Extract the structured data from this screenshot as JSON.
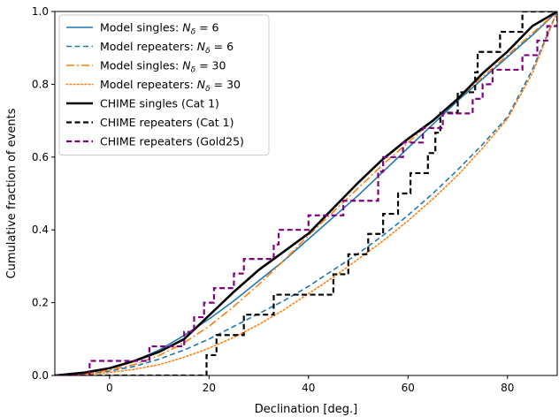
{
  "chart_data": {
    "type": "line",
    "title": "",
    "xlabel": "Declination [deg.]",
    "ylabel": "Cumulative fraction of events",
    "xlim": [
      -11,
      90
    ],
    "ylim": [
      0,
      1
    ],
    "x_ticks": [
      0,
      20,
      40,
      60,
      80
    ],
    "x_tick_labels": [
      "0",
      "20",
      "40",
      "60",
      "80"
    ],
    "y_ticks": [
      0,
      0.2,
      0.4,
      0.6,
      0.8,
      1.0
    ],
    "y_tick_labels": [
      "0.0",
      "0.2",
      "0.4",
      "0.6",
      "0.8",
      "1.0"
    ],
    "grid": false,
    "legend_position": "top-left",
    "series": [
      {
        "name_prefix": "Model singles: ",
        "name_math": "N",
        "name_sub": "δ",
        "name_suffix": " = 6",
        "color": "#1f77b4",
        "style": "solid",
        "width": 1.6,
        "step": false,
        "x": [
          -11,
          -5,
          0,
          5,
          10,
          15,
          20,
          25,
          30,
          35,
          40,
          45,
          50,
          55,
          60,
          65,
          70,
          75,
          80,
          85,
          90
        ],
        "y": [
          0,
          0.005,
          0.02,
          0.04,
          0.07,
          0.11,
          0.155,
          0.205,
          0.26,
          0.315,
          0.375,
          0.435,
          0.495,
          0.56,
          0.625,
          0.69,
          0.755,
          0.815,
          0.875,
          0.935,
          1.0
        ]
      },
      {
        "name_prefix": "Model repeaters: ",
        "name_math": "N",
        "name_sub": "δ",
        "name_suffix": " = 6",
        "color": "#1f77b4",
        "style": "dashed",
        "width": 1.6,
        "step": false,
        "x": [
          -11,
          -5,
          0,
          5,
          10,
          15,
          20,
          25,
          30,
          35,
          40,
          45,
          50,
          55,
          60,
          65,
          70,
          75,
          80,
          85,
          90
        ],
        "y": [
          0,
          0.004,
          0.012,
          0.025,
          0.045,
          0.07,
          0.1,
          0.135,
          0.17,
          0.205,
          0.245,
          0.29,
          0.335,
          0.385,
          0.44,
          0.5,
          0.565,
          0.635,
          0.71,
          0.84,
          1.0
        ]
      },
      {
        "name_prefix": "Model singles: ",
        "name_math": "N",
        "name_sub": "δ",
        "name_suffix": " = 30",
        "color": "#ff7f0e",
        "style": "dashdot",
        "width": 1.6,
        "step": false,
        "x": [
          -11,
          -5,
          0,
          5,
          10,
          15,
          20,
          25,
          30,
          35,
          40,
          45,
          50,
          55,
          60,
          65,
          70,
          75,
          80,
          85,
          90
        ],
        "y": [
          0,
          0.004,
          0.015,
          0.03,
          0.055,
          0.09,
          0.135,
          0.19,
          0.25,
          0.315,
          0.385,
          0.45,
          0.515,
          0.58,
          0.64,
          0.7,
          0.76,
          0.82,
          0.88,
          0.94,
          1.0
        ]
      },
      {
        "name_prefix": "Model repeaters: ",
        "name_math": "N",
        "name_sub": "δ",
        "name_suffix": " = 30",
        "color": "#ff7f0e",
        "style": "dotted",
        "width": 1.6,
        "step": false,
        "x": [
          -11,
          -5,
          0,
          5,
          10,
          15,
          20,
          25,
          30,
          35,
          40,
          45,
          50,
          55,
          60,
          65,
          70,
          75,
          80,
          85,
          90
        ],
        "y": [
          0,
          0.003,
          0.008,
          0.017,
          0.03,
          0.05,
          0.075,
          0.105,
          0.14,
          0.18,
          0.225,
          0.27,
          0.32,
          0.37,
          0.425,
          0.485,
          0.55,
          0.625,
          0.705,
          0.83,
          1.0
        ]
      },
      {
        "name": "CHIME singles (Cat 1)",
        "color": "#000000",
        "style": "solid",
        "width": 2.6,
        "step": false,
        "x": [
          -11,
          -5,
          0,
          5,
          10,
          15,
          20,
          25,
          30,
          35,
          40,
          45,
          50,
          55,
          60,
          65,
          70,
          75,
          80,
          85,
          90
        ],
        "y": [
          0,
          0.008,
          0.02,
          0.04,
          0.065,
          0.1,
          0.165,
          0.23,
          0.29,
          0.34,
          0.39,
          0.46,
          0.53,
          0.595,
          0.65,
          0.7,
          0.76,
          0.83,
          0.89,
          0.96,
          1.0
        ]
      },
      {
        "name": "CHIME repeaters (Cat 1)",
        "color": "#000000",
        "style": "dashed",
        "width": 2.2,
        "step": true,
        "x": [
          -11,
          17,
          19.5,
          21.5,
          27,
          33,
          45,
          48,
          52,
          55,
          58,
          60.5,
          64,
          65.5,
          66.5,
          70,
          73.5,
          74,
          78.5,
          83,
          90
        ],
        "y": [
          0,
          0,
          0.056,
          0.111,
          0.167,
          0.222,
          0.278,
          0.333,
          0.389,
          0.444,
          0.5,
          0.556,
          0.611,
          0.667,
          0.722,
          0.778,
          0.833,
          0.889,
          0.944,
          1.0,
          1.0
        ]
      },
      {
        "name": "CHIME repeaters (Gold25)",
        "color": "#800080",
        "style": "dashed",
        "width": 2.2,
        "step": true,
        "x": [
          -11,
          -4,
          0,
          5,
          8,
          15,
          17,
          19,
          21,
          25,
          27,
          33,
          34,
          40,
          47,
          54,
          55,
          59,
          63,
          67,
          73,
          75,
          77,
          83,
          86,
          88,
          90
        ],
        "y": [
          0,
          0.04,
          0.04,
          0.04,
          0.08,
          0.12,
          0.16,
          0.2,
          0.24,
          0.28,
          0.32,
          0.36,
          0.4,
          0.44,
          0.48,
          0.56,
          0.6,
          0.64,
          0.68,
          0.72,
          0.76,
          0.8,
          0.84,
          0.88,
          0.92,
          0.96,
          1.0
        ]
      }
    ]
  }
}
